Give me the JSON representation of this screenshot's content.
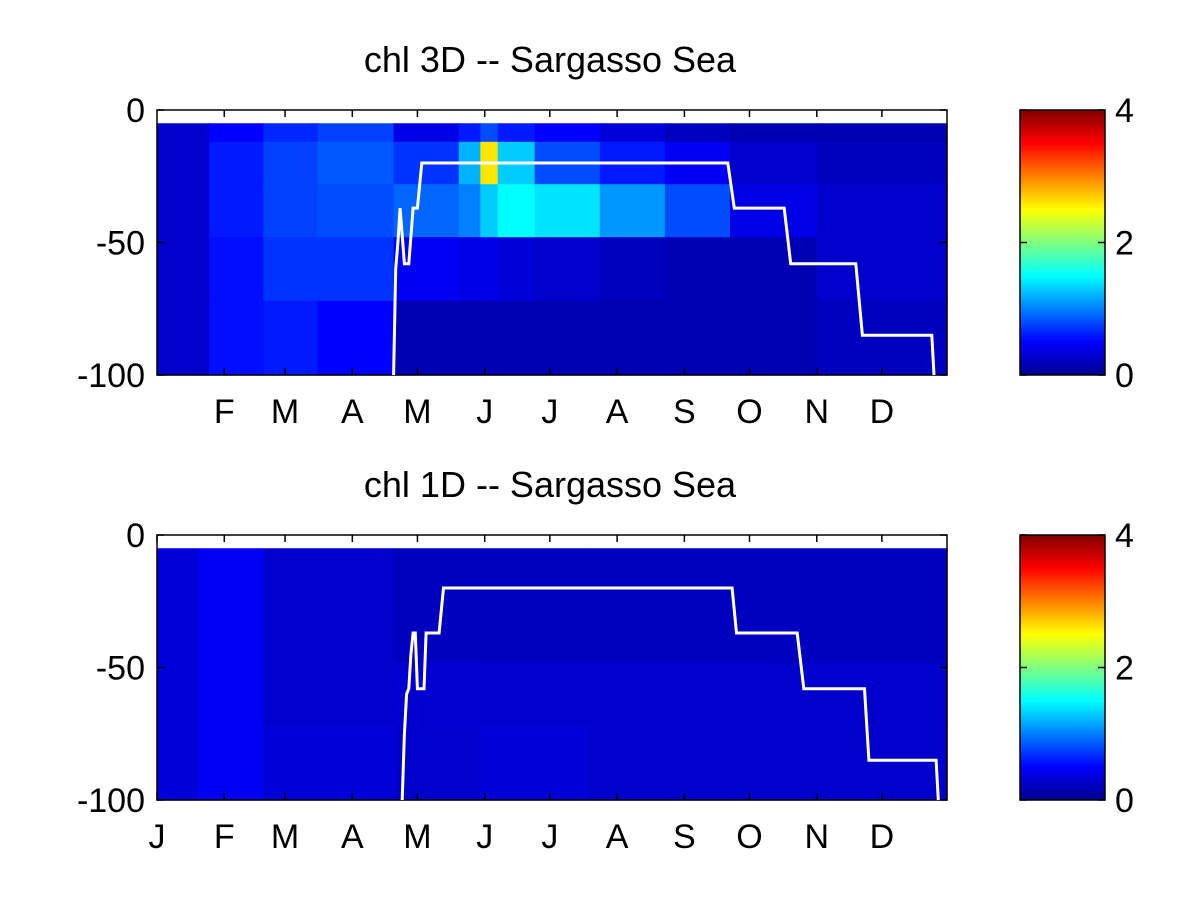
{
  "chart_data": [
    {
      "type": "heatmap",
      "title": "chl 3D   -- Sargasso Sea",
      "xlabel": "",
      "ylabel": "",
      "x_tick_labels": [
        "F",
        "M",
        "A",
        "M",
        "J",
        "J",
        "A",
        "S",
        "O",
        "N",
        "D"
      ],
      "x_tick_days": [
        32,
        60,
        91,
        121,
        152,
        182,
        213,
        244,
        274,
        305,
        335
      ],
      "xlim_days": [
        1,
        365
      ],
      "ylim": [
        -100,
        0
      ],
      "y_ticks": [
        0,
        -50,
        -100
      ],
      "colorbar": {
        "range": [
          0,
          4
        ],
        "ticks": [
          0,
          2,
          4
        ],
        "colormap": "jet"
      },
      "depth_layers": [
        {
          "top": -5,
          "bottom": -12
        },
        {
          "top": -12,
          "bottom": -28
        },
        {
          "top": -28,
          "bottom": -48
        },
        {
          "top": -48,
          "bottom": -72
        },
        {
          "top": -72,
          "bottom": -100
        }
      ],
      "chl_profile": [
        {
          "day_start": 1,
          "day_end": 25,
          "values": [
            0.3,
            0.3,
            0.3,
            0.3,
            0.3
          ]
        },
        {
          "day_start": 25,
          "day_end": 50,
          "values": [
            0.5,
            0.6,
            0.6,
            0.55,
            0.55
          ]
        },
        {
          "day_start": 50,
          "day_end": 75,
          "values": [
            0.65,
            0.75,
            0.75,
            0.7,
            0.6
          ]
        },
        {
          "day_start": 75,
          "day_end": 110,
          "values": [
            0.75,
            0.85,
            0.8,
            0.7,
            0.5
          ]
        },
        {
          "day_start": 110,
          "day_end": 140,
          "values": [
            0.4,
            0.7,
            0.9,
            0.45,
            0.2
          ]
        },
        {
          "day_start": 140,
          "day_end": 150,
          "values": [
            0.6,
            1.2,
            1.0,
            0.4,
            0.2
          ]
        },
        {
          "day_start": 150,
          "day_end": 158,
          "values": [
            0.8,
            2.6,
            1.3,
            0.4,
            0.2
          ]
        },
        {
          "day_start": 158,
          "day_end": 175,
          "values": [
            0.6,
            1.3,
            1.5,
            0.35,
            0.2
          ]
        },
        {
          "day_start": 175,
          "day_end": 205,
          "values": [
            0.5,
            0.8,
            1.4,
            0.3,
            0.2
          ]
        },
        {
          "day_start": 205,
          "day_end": 235,
          "values": [
            0.35,
            0.6,
            1.1,
            0.25,
            0.2
          ]
        },
        {
          "day_start": 235,
          "day_end": 265,
          "values": [
            0.25,
            0.45,
            0.8,
            0.2,
            0.2
          ]
        },
        {
          "day_start": 265,
          "day_end": 305,
          "values": [
            0.2,
            0.3,
            0.4,
            0.2,
            0.2
          ]
        },
        {
          "day_start": 305,
          "day_end": 365,
          "values": [
            0.2,
            0.25,
            0.3,
            0.3,
            0.25
          ]
        }
      ],
      "line_points": [
        [
          110,
          -100
        ],
        [
          111,
          -60
        ],
        [
          112,
          -50
        ],
        [
          113,
          -37
        ],
        [
          115,
          -58
        ],
        [
          117,
          -58
        ],
        [
          119,
          -37
        ],
        [
          121,
          -37
        ],
        [
          123,
          -20
        ],
        [
          264,
          -20
        ],
        [
          267,
          -37
        ],
        [
          290,
          -37
        ],
        [
          293,
          -58
        ],
        [
          323,
          -58
        ],
        [
          326,
          -85
        ],
        [
          358,
          -85
        ],
        [
          359,
          -100
        ]
      ]
    },
    {
      "type": "heatmap",
      "title": "chl 1D   -- Sargasso Sea",
      "xlabel": "",
      "ylabel": "",
      "x_tick_labels": [
        "J",
        "F",
        "M",
        "A",
        "M",
        "J",
        "J",
        "A",
        "S",
        "O",
        "N",
        "D"
      ],
      "x_tick_days": [
        1,
        32,
        60,
        91,
        121,
        152,
        182,
        213,
        244,
        274,
        305,
        335
      ],
      "xlim_days": [
        1,
        365
      ],
      "ylim": [
        -100,
        0
      ],
      "y_ticks": [
        0,
        -50,
        -100
      ],
      "colorbar": {
        "range": [
          0,
          4
        ],
        "ticks": [
          0,
          2,
          4
        ],
        "colormap": "jet"
      },
      "depth_layers": [
        {
          "top": -5,
          "bottom": -48
        },
        {
          "top": -48,
          "bottom": -72
        },
        {
          "top": -72,
          "bottom": -100
        }
      ],
      "chl_profile": [
        {
          "day_start": 1,
          "day_end": 20,
          "values": [
            0.35,
            0.35,
            0.35
          ]
        },
        {
          "day_start": 20,
          "day_end": 50,
          "values": [
            0.45,
            0.45,
            0.45
          ]
        },
        {
          "day_start": 50,
          "day_end": 110,
          "values": [
            0.3,
            0.3,
            0.35
          ]
        },
        {
          "day_start": 110,
          "day_end": 150,
          "values": [
            0.25,
            0.32,
            0.3
          ]
        },
        {
          "day_start": 150,
          "day_end": 200,
          "values": [
            0.25,
            0.3,
            0.35
          ]
        },
        {
          "day_start": 200,
          "day_end": 365,
          "values": [
            0.25,
            0.3,
            0.3
          ]
        }
      ],
      "line_points": [
        [
          114,
          -100
        ],
        [
          115,
          -75
        ],
        [
          116,
          -60
        ],
        [
          117,
          -58
        ],
        [
          118,
          -45
        ],
        [
          119,
          -37
        ],
        [
          120,
          -37
        ],
        [
          121,
          -58
        ],
        [
          124,
          -58
        ],
        [
          125,
          -37
        ],
        [
          131,
          -37
        ],
        [
          133,
          -20
        ],
        [
          266,
          -20
        ],
        [
          268,
          -37
        ],
        [
          296,
          -37
        ],
        [
          299,
          -58
        ],
        [
          327,
          -58
        ],
        [
          329,
          -85
        ],
        [
          360,
          -85
        ],
        [
          361,
          -100
        ]
      ]
    }
  ]
}
